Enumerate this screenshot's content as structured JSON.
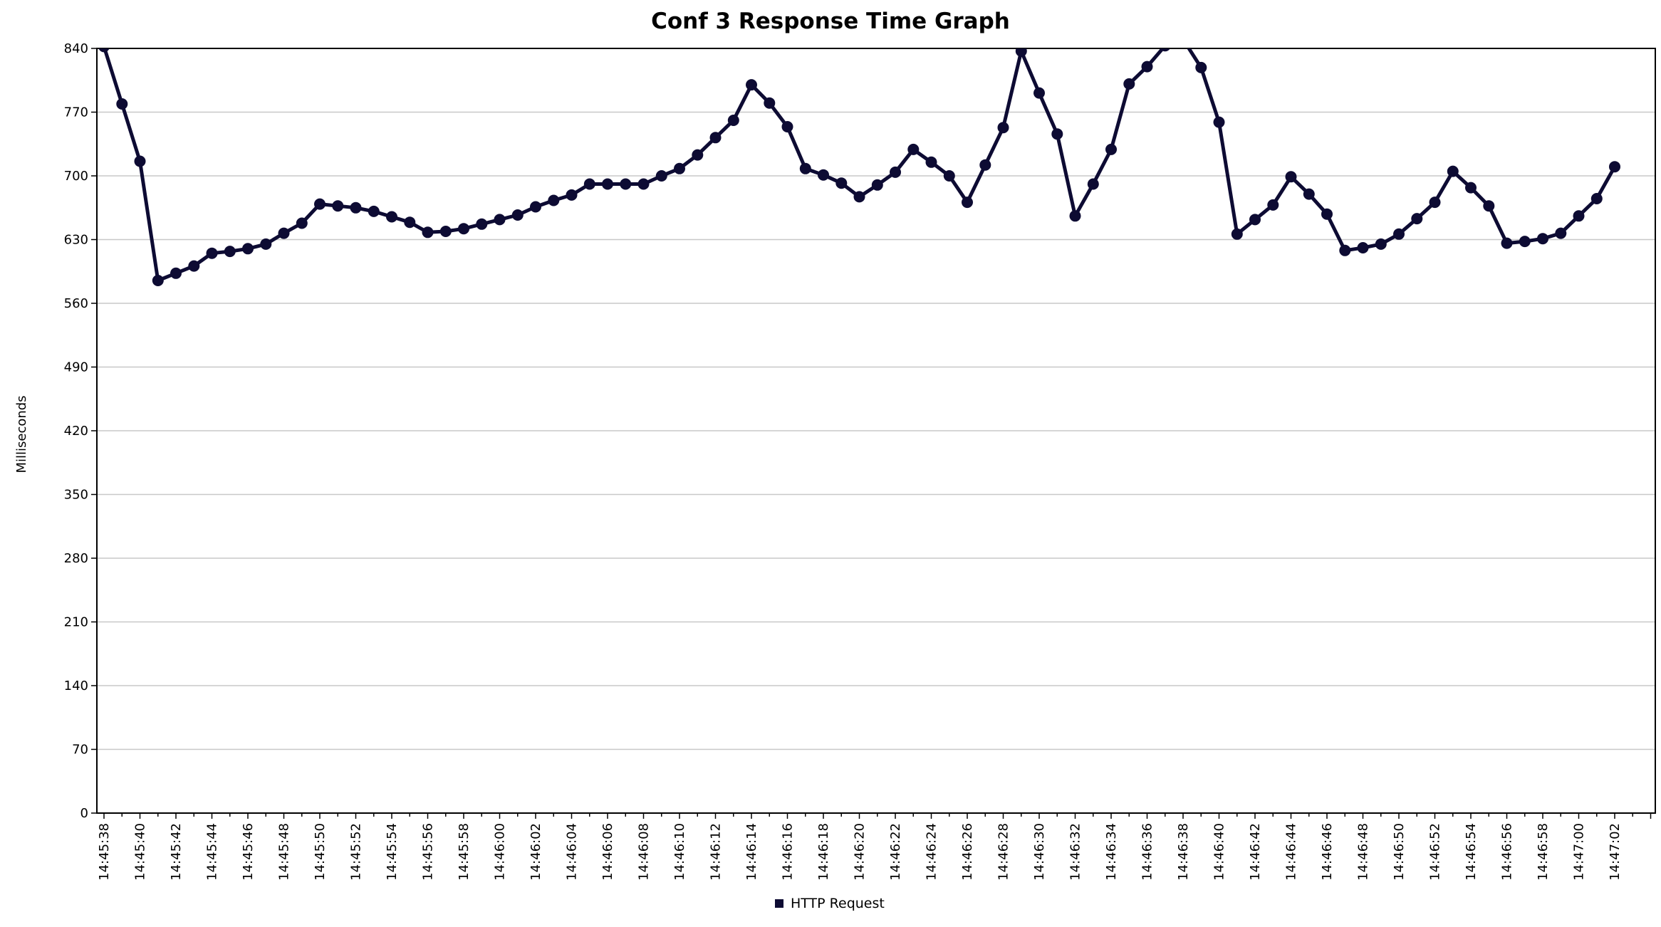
{
  "chart_data": {
    "type": "line",
    "title": "Conf 3 Response Time Graph",
    "xlabel": "",
    "ylabel": "Milliseconds",
    "ylim": [
      0,
      840
    ],
    "yticks": [
      0,
      70,
      140,
      210,
      280,
      350,
      420,
      490,
      560,
      630,
      700,
      770,
      840
    ],
    "grid": true,
    "legend_placement": "bottom-center",
    "line_color": "#0d0b33",
    "x_start": "14:45:38",
    "x_labels": [
      "14:45:38",
      "14:45:40",
      "14:45:42",
      "14:45:44",
      "14:45:46",
      "14:45:48",
      "14:45:50",
      "14:45:52",
      "14:45:54",
      "14:45:56",
      "14:45:58",
      "14:46:00",
      "14:46:02",
      "14:46:04",
      "14:46:06",
      "14:46:08",
      "14:46:10",
      "14:46:12",
      "14:46:14",
      "14:46:16",
      "14:46:18",
      "14:46:20",
      "14:46:22",
      "14:46:24",
      "14:46:26",
      "14:46:28",
      "14:46:30",
      "14:46:32",
      "14:46:34",
      "14:46:36",
      "14:46:38",
      "14:46:40",
      "14:46:42",
      "14:46:44",
      "14:46:46",
      "14:46:48",
      "14:46:50",
      "14:46:52",
      "14:46:54",
      "14:46:56",
      "14:46:58",
      "14:47:00",
      "14:47:02"
    ],
    "series": [
      {
        "name": "HTTP Request",
        "x": [
          "14:45:38",
          "14:45:39",
          "14:45:40",
          "14:45:41",
          "14:45:42",
          "14:45:43",
          "14:45:44",
          "14:45:45",
          "14:45:46",
          "14:45:47",
          "14:45:48",
          "14:45:49",
          "14:45:50",
          "14:45:51",
          "14:45:52",
          "14:45:53",
          "14:45:54",
          "14:45:55",
          "14:45:56",
          "14:45:57",
          "14:45:58",
          "14:45:59",
          "14:46:00",
          "14:46:01",
          "14:46:02",
          "14:46:03",
          "14:46:04",
          "14:46:05",
          "14:46:06",
          "14:46:07",
          "14:46:08",
          "14:46:09",
          "14:46:10",
          "14:46:11",
          "14:46:12",
          "14:46:13",
          "14:46:14",
          "14:46:15",
          "14:46:16",
          "14:46:17",
          "14:46:18",
          "14:46:19",
          "14:46:20",
          "14:46:21",
          "14:46:22",
          "14:46:23",
          "14:46:24",
          "14:46:25",
          "14:46:26",
          "14:46:27",
          "14:46:28",
          "14:46:29",
          "14:46:30",
          "14:46:31",
          "14:46:32",
          "14:46:33",
          "14:46:34",
          "14:46:35",
          "14:46:36",
          "14:46:37",
          "14:46:38",
          "14:46:39",
          "14:46:40",
          "14:46:41",
          "14:46:42",
          "14:46:43",
          "14:46:44",
          "14:46:45",
          "14:46:46",
          "14:46:47",
          "14:46:48",
          "14:46:49",
          "14:46:50",
          "14:46:51",
          "14:46:52",
          "14:46:53",
          "14:46:54",
          "14:46:55",
          "14:46:56",
          "14:46:57",
          "14:46:58",
          "14:46:59",
          "14:47:00",
          "14:47:01",
          "14:47:02"
        ],
        "values": [
          842,
          779,
          716,
          585,
          593,
          601,
          615,
          617,
          620,
          625,
          637,
          648,
          669,
          667,
          665,
          661,
          655,
          649,
          638,
          639,
          642,
          647,
          652,
          657,
          666,
          673,
          679,
          691,
          691,
          691,
          691,
          700,
          708,
          723,
          742,
          761,
          800,
          780,
          754,
          708,
          701,
          692,
          677,
          690,
          704,
          729,
          715,
          700,
          671,
          712,
          753,
          837,
          791,
          746,
          656,
          691,
          729,
          801,
          820,
          843,
          850,
          819,
          759,
          636,
          652,
          668,
          699,
          680,
          658,
          618,
          621,
          625,
          636,
          653,
          671,
          705,
          687,
          667,
          626,
          628,
          631,
          637,
          656,
          675,
          710
        ]
      }
    ]
  }
}
